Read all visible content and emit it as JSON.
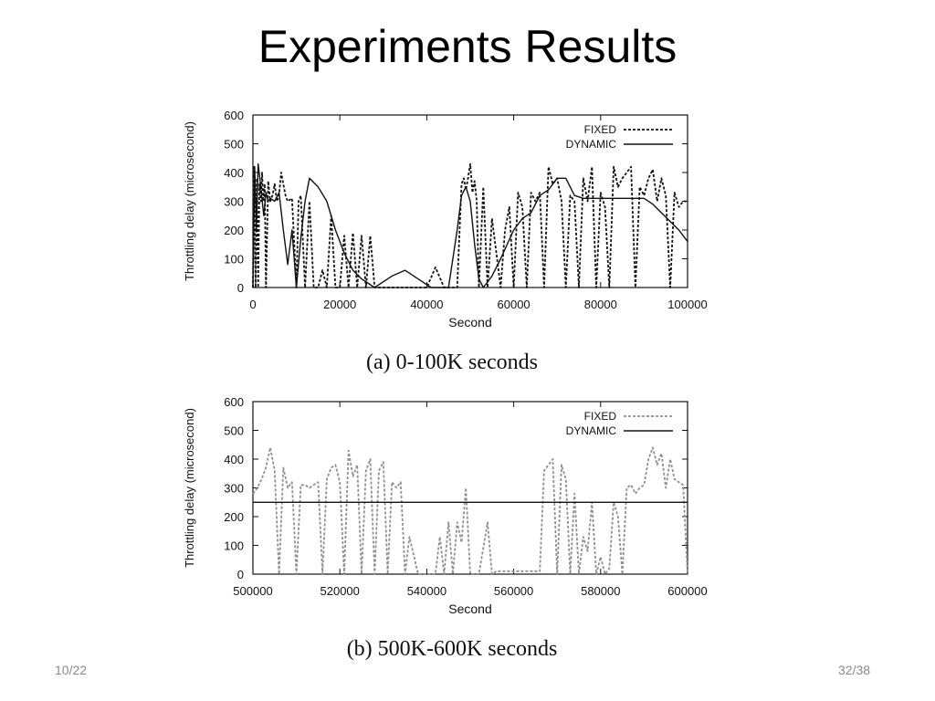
{
  "slide": {
    "title": "Experiments Results",
    "footer_left": "10/22",
    "footer_right": "32/38"
  },
  "colors": {
    "fixed": "#111111",
    "dynamic": "#111111",
    "fixed_b": "#8f8f8f"
  },
  "chart_data": [
    {
      "type": "line",
      "caption": "(a) 0-100K seconds",
      "xlabel": "Second",
      "ylabel": "Throttling delay (microsecond)",
      "xlim": [
        0,
        100000
      ],
      "ylim": [
        0,
        600
      ],
      "xticks": [
        0,
        20000,
        40000,
        60000,
        80000,
        100000
      ],
      "yticks": [
        0,
        100,
        200,
        300,
        400,
        500,
        600
      ],
      "legend": "top-right",
      "series": [
        {
          "name": "FIXED",
          "style": "dashed",
          "x": [
            0,
            300,
            600,
            900,
            1200,
            1500,
            1800,
            2100,
            2400,
            2700,
            3000,
            3500,
            4000,
            4500,
            5000,
            5500,
            6000,
            6500,
            7000,
            7500,
            8000,
            9000,
            10000,
            10500,
            11000,
            12000,
            13000,
            14000,
            15000,
            16000,
            17000,
            18000,
            19000,
            20000,
            21000,
            22000,
            23000,
            24000,
            25000,
            26000,
            27000,
            28000,
            29000,
            30000,
            32000,
            34000,
            36000,
            38000,
            40000,
            42000,
            44000,
            46000,
            47000,
            48000,
            48500,
            49000,
            49500,
            50000,
            50500,
            51000,
            51500,
            52000,
            53000,
            54000,
            55000,
            56000,
            57000,
            58000,
            59000,
            60000,
            61000,
            62000,
            63000,
            64000,
            65000,
            66000,
            67000,
            68000,
            69000,
            70000,
            71000,
            72000,
            73000,
            74000,
            75000,
            76000,
            77000,
            78000,
            79000,
            80000,
            81000,
            82000,
            83000,
            84000,
            85000,
            86000,
            87000,
            88000,
            89000,
            90000,
            91000,
            92000,
            93000,
            94000,
            95000,
            96000,
            97000,
            98000,
            99000,
            100000
          ],
          "y": [
            0,
            420,
            0,
            380,
            0,
            360,
            300,
            400,
            300,
            360,
            0,
            370,
            300,
            320,
            360,
            300,
            320,
            400,
            360,
            320,
            300,
            310,
            0,
            300,
            320,
            0,
            300,
            0,
            0,
            60,
            0,
            250,
            0,
            0,
            180,
            0,
            190,
            0,
            180,
            0,
            180,
            0,
            0,
            0,
            0,
            0,
            0,
            0,
            0,
            70,
            0,
            0,
            0,
            360,
            380,
            340,
            380,
            430,
            330,
            370,
            300,
            0,
            350,
            0,
            240,
            120,
            0,
            200,
            280,
            0,
            330,
            280,
            0,
            330,
            300,
            330,
            0,
            420,
            360,
            380,
            300,
            0,
            320,
            300,
            0,
            380,
            300,
            420,
            0,
            330,
            280,
            0,
            420,
            350,
            380,
            400,
            420,
            0,
            350,
            320,
            380,
            410,
            300,
            380,
            320,
            0,
            330,
            280,
            300,
            300
          ],
          "note": "approximate reading of dense trace"
        },
        {
          "name": "DYNAMIC",
          "style": "solid",
          "x": [
            0,
            400,
            800,
            1200,
            1600,
            2000,
            2500,
            3000,
            3500,
            4000,
            5000,
            6000,
            7000,
            8000,
            9000,
            10000,
            11000,
            12000,
            13000,
            15000,
            17000,
            19000,
            21000,
            23000,
            25000,
            28000,
            30000,
            32000,
            35000,
            38000,
            41000,
            43000,
            45000,
            47000,
            48000,
            49000,
            50000,
            51000,
            52000,
            53000,
            55000,
            57000,
            60000,
            62000,
            64000,
            66000,
            68000,
            70000,
            72000,
            74000,
            76000,
            78000,
            80000,
            82000,
            84000,
            86000,
            88000,
            90000,
            92000,
            94000,
            96000,
            98000,
            100000
          ],
          "y": [
            0,
            420,
            200,
            430,
            380,
            320,
            250,
            330,
            300,
            310,
            300,
            330,
            200,
            80,
            200,
            0,
            170,
            300,
            380,
            350,
            300,
            200,
            120,
            60,
            30,
            0,
            20,
            40,
            60,
            30,
            0,
            0,
            0,
            200,
            320,
            350,
            300,
            150,
            30,
            0,
            40,
            100,
            200,
            240,
            260,
            320,
            340,
            380,
            380,
            320,
            310,
            310,
            310,
            310,
            310,
            310,
            310,
            310,
            290,
            260,
            230,
            200,
            160
          ],
          "note": "approximate reading of trace"
        }
      ]
    },
    {
      "type": "line",
      "caption": "(b) 500K-600K seconds",
      "xlabel": "Second",
      "ylabel": "Throttling delay (microsecond)",
      "xlim": [
        500000,
        600000
      ],
      "ylim": [
        0,
        600
      ],
      "xticks": [
        500000,
        520000,
        540000,
        560000,
        580000,
        600000
      ],
      "yticks": [
        0,
        100,
        200,
        300,
        400,
        500,
        600
      ],
      "legend": "top-right",
      "series": [
        {
          "name": "FIXED",
          "style": "dashed",
          "x": [
            500000,
            501000,
            502000,
            503000,
            504000,
            505000,
            506000,
            507000,
            508000,
            509000,
            510000,
            511000,
            512000,
            513000,
            514000,
            515000,
            516000,
            517000,
            518000,
            519000,
            520000,
            521000,
            522000,
            523000,
            524000,
            525000,
            526000,
            527000,
            528000,
            529000,
            530000,
            531000,
            532000,
            533000,
            534000,
            535000,
            536000,
            538000,
            540000,
            542000,
            543000,
            544000,
            545000,
            546000,
            547000,
            548000,
            549000,
            550000,
            552000,
            554000,
            555000,
            556000,
            558000,
            560000,
            562000,
            564000,
            566000,
            567000,
            568000,
            569000,
            570000,
            571000,
            572000,
            573000,
            574000,
            575000,
            576000,
            577000,
            578000,
            579000,
            580000,
            581000,
            582000,
            583000,
            584000,
            585000,
            586000,
            587000,
            588000,
            589000,
            590000,
            591000,
            592000,
            593000,
            594000,
            595000,
            596000,
            597000,
            598000,
            599000,
            600000
          ],
          "y": [
            280,
            300,
            330,
            370,
            440,
            360,
            0,
            370,
            300,
            320,
            0,
            310,
            310,
            300,
            310,
            320,
            0,
            330,
            370,
            380,
            320,
            0,
            430,
            340,
            380,
            0,
            360,
            400,
            0,
            360,
            390,
            0,
            320,
            300,
            320,
            0,
            130,
            0,
            0,
            0,
            130,
            0,
            180,
            0,
            180,
            110,
            300,
            0,
            0,
            180,
            0,
            10,
            10,
            10,
            10,
            10,
            10,
            360,
            380,
            400,
            0,
            380,
            330,
            0,
            280,
            0,
            130,
            80,
            250,
            0,
            60,
            0,
            20,
            250,
            200,
            0,
            300,
            310,
            280,
            300,
            310,
            400,
            440,
            380,
            420,
            300,
            400,
            330,
            320,
            310,
            0
          ],
          "note": "approximate reading of dense trace"
        },
        {
          "name": "DYNAMIC",
          "style": "solid",
          "x": [
            500000,
            600000
          ],
          "y": [
            250,
            250
          ]
        }
      ]
    }
  ]
}
